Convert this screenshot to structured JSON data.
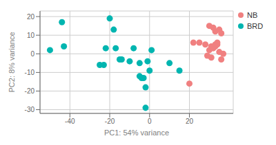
{
  "chart_data": {
    "type": "scatter",
    "xlabel": "PC1: 54% variance",
    "ylabel": "PC2: 8% variance",
    "series": [
      {
        "name": "NB",
        "color": "#F08080",
        "x": [
          30,
          32,
          33,
          35,
          36,
          28,
          31,
          34,
          33,
          32,
          30,
          35,
          37,
          29,
          31,
          36,
          34,
          33,
          20,
          22,
          25
        ],
        "values": [
          15,
          14,
          12,
          13,
          11,
          5,
          4,
          5,
          4,
          3,
          2,
          1,
          0,
          -1,
          -2,
          -3,
          6,
          5,
          -16,
          6,
          6
        ]
      },
      {
        "name": "BRD",
        "color": "#00B5B0",
        "x": [
          -50,
          -44,
          -43,
          -25,
          -23,
          -22,
          -20,
          -18,
          -17,
          -15,
          -14,
          -10,
          -8,
          -5,
          -4,
          -3,
          -2,
          -1,
          0,
          10,
          15,
          1,
          -2,
          -5
        ],
        "values": [
          2,
          17,
          4,
          -6,
          -6,
          3,
          19,
          13,
          3,
          -3,
          -3,
          -4,
          3,
          -5,
          -13,
          -13,
          -18,
          -4,
          -9,
          -5,
          -9,
          2,
          -29,
          -12
        ]
      }
    ],
    "xlim": [
      -55,
      42
    ],
    "ylim": [
      -32,
      23
    ],
    "xticks": [
      -40,
      -20,
      0,
      20
    ],
    "yticks": [
      -30,
      -20,
      -10,
      0,
      10,
      20
    ],
    "grid": true,
    "legend": "right"
  }
}
